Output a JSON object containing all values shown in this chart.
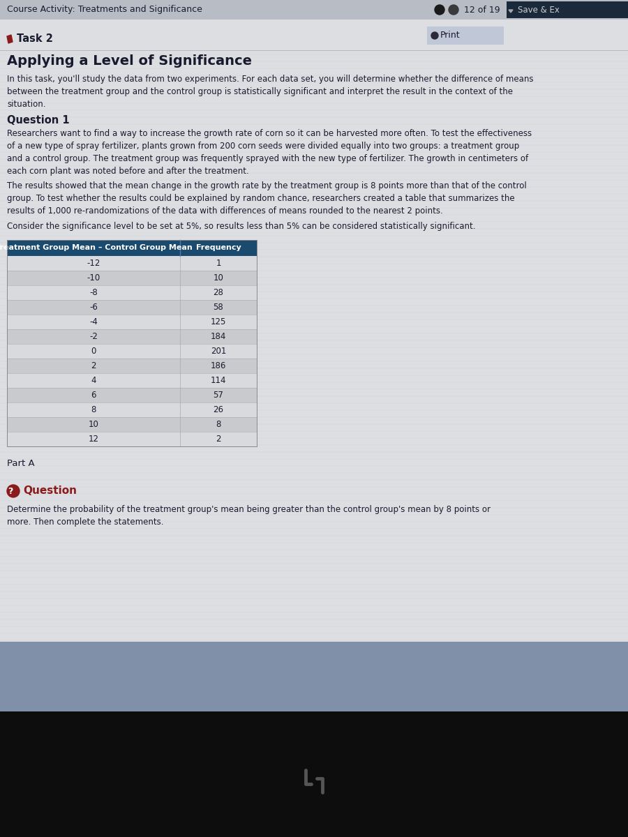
{
  "header_bg": "#b8bcc4",
  "header_text_color": "#1a1a2e",
  "header_title": "Course Activity: Treatments and Significance",
  "header_right": "12 of 19",
  "header_save": "Save & Ex",
  "page_bg": "#c8ccd4",
  "content_bg": "#dcdee2",
  "task_label": "Task 2",
  "print_label": "Print",
  "main_title": "Applying a Level of Significance",
  "intro_text": "In this task, you'll study the data from two experiments. For each data set, you will determine whether the difference of means\nbetween the treatment group and the control group is statistically significant and interpret the result in the context of the\nsituation.",
  "q1_title": "Question 1",
  "q1_text1": "Researchers want to find a way to increase the growth rate of corn so it can be harvested more often. To test the effectiveness\nof a new type of spray fertilizer, plants grown from 200 corn seeds were divided equally into two groups: a treatment group\nand a control group. The treatment group was frequently sprayed with the new type of fertilizer. The growth in centimeters of\neach corn plant was noted before and after the treatment.",
  "q1_text2": "The results showed that the mean change in the growth rate by the treatment group is 8 points more than that of the control\ngroup. To test whether the results could be explained by random chance, researchers created a table that summarizes the\nresults of 1,000 re-randomizations of the data with differences of means rounded to the nearest 2 points.",
  "q1_text3": "Consider the significance level to be set at 5%, so results less than 5% can be considered statistically significant.",
  "table_header_bg": "#1a4a6e",
  "table_header_text": "#ffffff",
  "table_col1_header": "Treatment Group Mean – Control Group Mean",
  "table_col2_header": "Frequency",
  "table_row_bg1": "#d8dade",
  "table_row_bg2": "#c8cacd",
  "table_data": [
    [
      "-12",
      "1"
    ],
    [
      "-10",
      "10"
    ],
    [
      "-8",
      "28"
    ],
    [
      "-6",
      "58"
    ],
    [
      "-4",
      "125"
    ],
    [
      "-2",
      "184"
    ],
    [
      "0",
      "201"
    ],
    [
      "2",
      "186"
    ],
    [
      "4",
      "114"
    ],
    [
      "6",
      "57"
    ],
    [
      "8",
      "26"
    ],
    [
      "10",
      "8"
    ],
    [
      "12",
      "2"
    ]
  ],
  "part_a_label": "Part A",
  "question_icon_color": "#8b1a1a",
  "question_label": "Question",
  "question_text": "Determine the probability of the treatment group's mean being greater than the control group's mean by 8 points or\nmore. Then complete the statements.",
  "bottom_bg": "#8090a8",
  "black_bg": "#0d0d0d",
  "pencil_color": "#8b1a1a",
  "text_color": "#1a1a2e",
  "save_btn_bg": "#1a2a3a",
  "print_btn_bg": "#c0c8d8",
  "separator_color": "#aaaaaa"
}
